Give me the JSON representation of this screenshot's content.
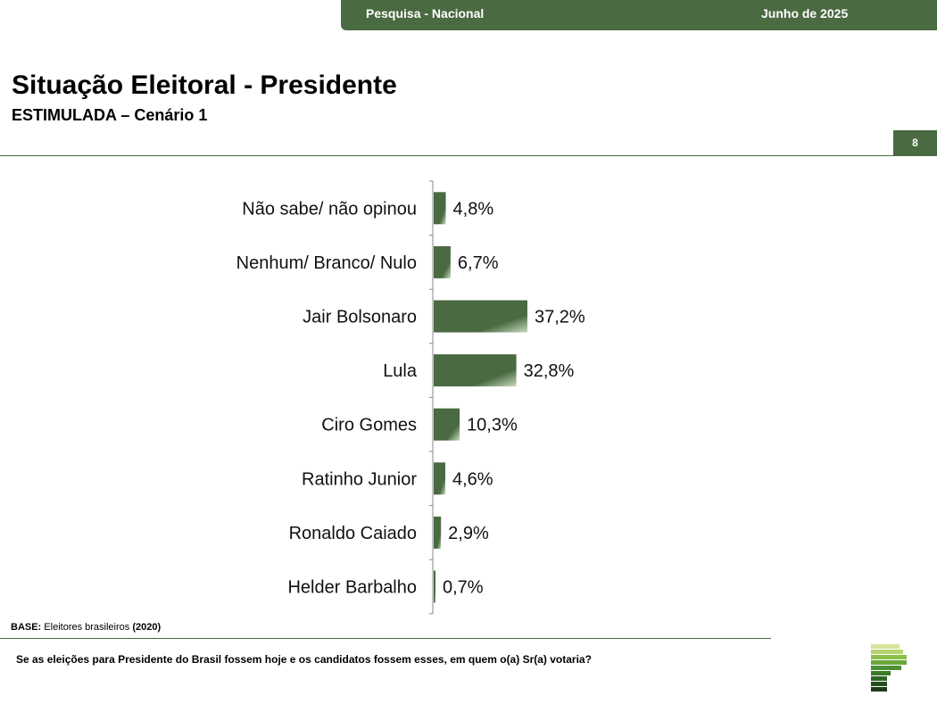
{
  "header": {
    "survey": "Pesquisa - Nacional",
    "date": "Junho de 2025"
  },
  "title": "Situação Eleitoral - Presidente",
  "subtitle": "ESTIMULADA – Cenário 1",
  "page_number": "8",
  "base": {
    "label": "BASE:",
    "text": "Eleitores brasileiros",
    "count": "(2020)"
  },
  "question": "Se as eleições para Presidente do Brasil fossem hoje e os candidatos fossem esses, em quem o(a) Sr(a) votaria?",
  "colors": {
    "bar": "#4a6a41",
    "bar_highlight": "#c9dcc0",
    "brand": "#4a6a41"
  },
  "chart_data": {
    "type": "bar",
    "orientation": "horizontal",
    "categories": [
      "Não sabe/ não opinou",
      "Nenhum/ Branco/ Nulo",
      "Jair Bolsonaro",
      "Lula",
      "Ciro Gomes",
      "Ratinho Junior",
      "Ronaldo Caiado",
      "Helder Barbalho"
    ],
    "values": [
      4.8,
      6.7,
      37.2,
      32.8,
      10.3,
      4.6,
      2.9,
      0.7
    ],
    "labels": [
      "4,8%",
      "6,7%",
      "37,2%",
      "32,8%",
      "10,3%",
      "4,6%",
      "2,9%",
      "0,7%"
    ],
    "unit": "%",
    "grid": false,
    "legend": "none"
  }
}
